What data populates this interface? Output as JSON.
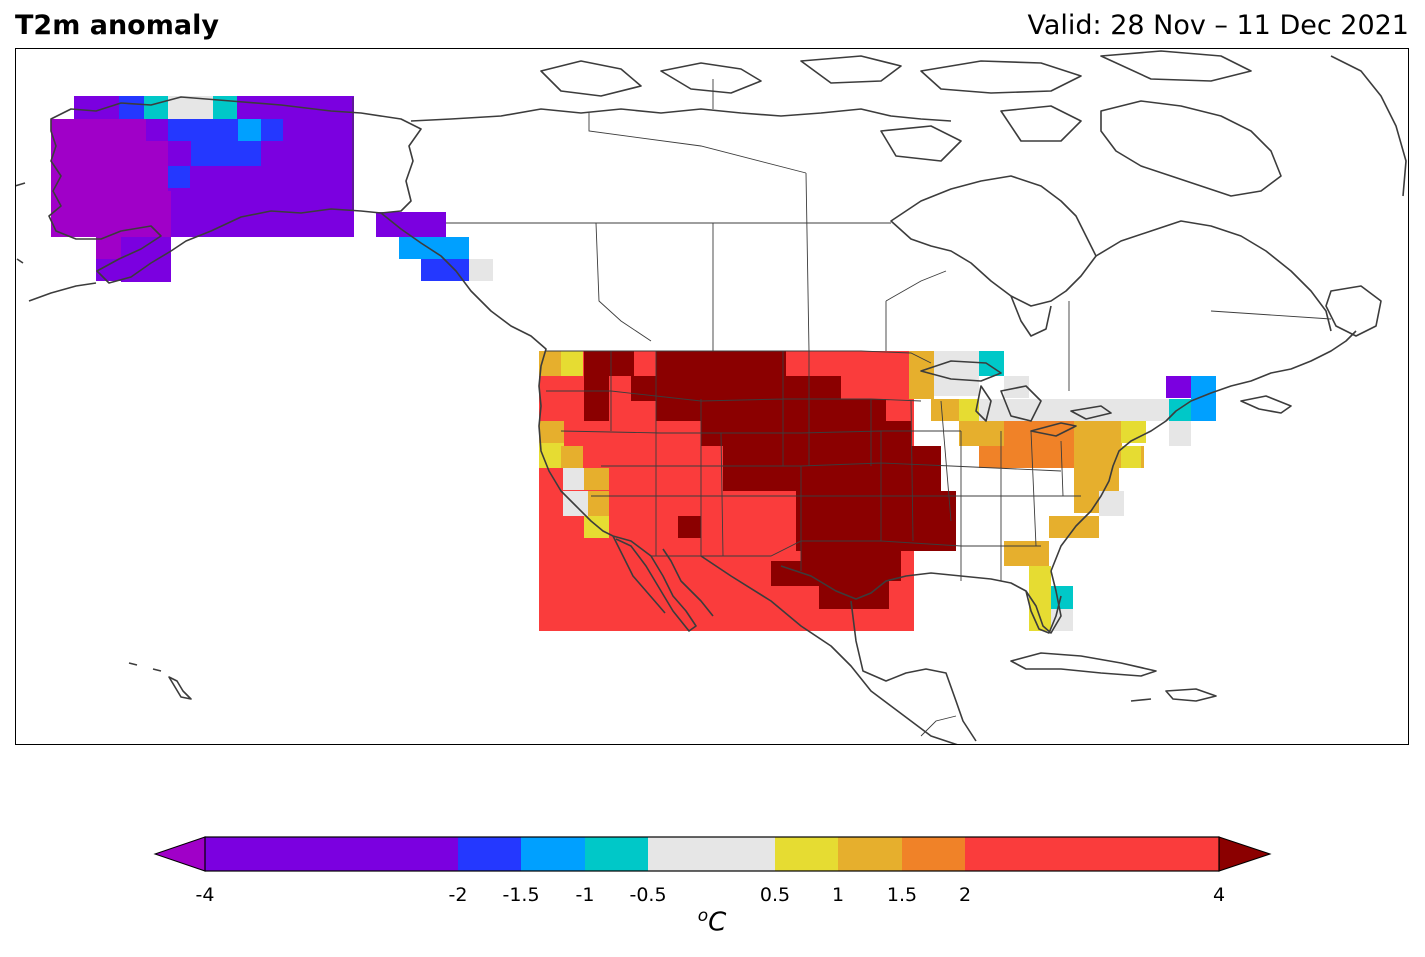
{
  "header": {
    "title": "T2m anomaly",
    "valid": "Valid: 28 Nov – 11 Dec 2021"
  },
  "colorbar": {
    "levels": [
      "-4",
      "-2",
      "-1.5",
      "-1",
      "-0.5",
      "0.5",
      "1",
      "1.5",
      "2",
      "4"
    ],
    "colors": [
      "#7b00e0",
      "#2438ff",
      "#00a0ff",
      "#00c8c8",
      "#e6e6e6",
      "#e6dc32",
      "#e6af2d",
      "#f08228",
      "#fa3c3c"
    ],
    "under_color": "#a000c8",
    "over_color": "#8b0000",
    "units": "C",
    "units_prefix": "o"
  },
  "map": {
    "region": "North America",
    "coastline_color": "#3c3c3c"
  }
}
